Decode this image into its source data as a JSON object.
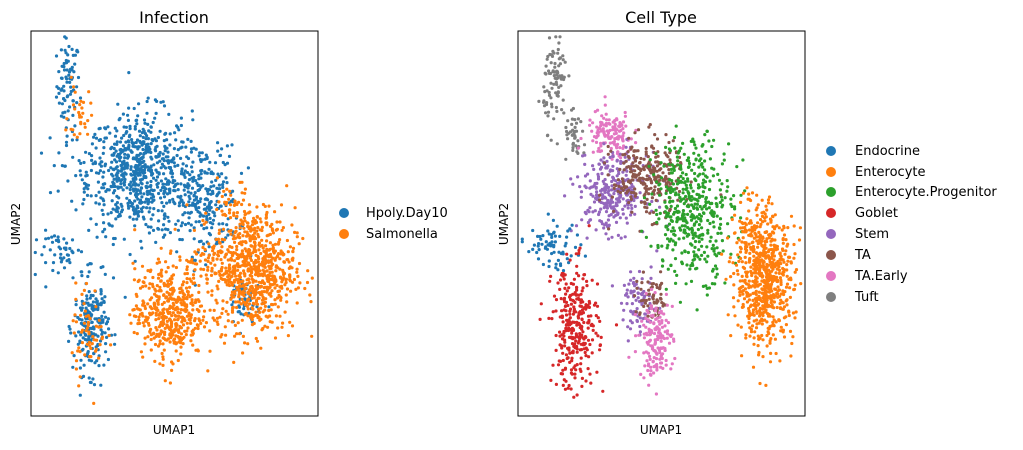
{
  "chart_data": [
    {
      "type": "scatter",
      "title": "Infection",
      "xlabel": "UMAP1",
      "ylabel": "UMAP2",
      "xlim": [
        0,
        100
      ],
      "ylim": [
        0,
        100
      ],
      "legend_position": "right",
      "legend": [
        {
          "label": "Hpoly.Day10",
          "color": "#1f77b4"
        },
        {
          "label": "Salmonella",
          "color": "#ff7f0e"
        }
      ],
      "clusters": [
        {
          "series": "Hpoly.Day10",
          "center": [
            13,
            86
          ],
          "spread": [
            2,
            6
          ],
          "count": 80
        },
        {
          "series": "Hpoly.Day10",
          "center": [
            22,
            64
          ],
          "spread": [
            8,
            4
          ],
          "count": 60
        },
        {
          "series": "Hpoly.Day10",
          "center": [
            38,
            63
          ],
          "spread": [
            9,
            8
          ],
          "count": 650
        },
        {
          "series": "Hpoly.Day10",
          "center": [
            60,
            56
          ],
          "spread": [
            6,
            7
          ],
          "count": 250
        },
        {
          "series": "Hpoly.Day10",
          "center": [
            12,
            42
          ],
          "spread": [
            5,
            3
          ],
          "count": 50
        },
        {
          "series": "Hpoly.Day10",
          "center": [
            21,
            23
          ],
          "spread": [
            3,
            6
          ],
          "count": 200
        },
        {
          "series": "Hpoly.Day10",
          "center": [
            74,
            30
          ],
          "spread": [
            3,
            4
          ],
          "count": 60
        },
        {
          "series": "Salmonella",
          "center": [
            17,
            78
          ],
          "spread": [
            2,
            4
          ],
          "count": 30
        },
        {
          "series": "Salmonella",
          "center": [
            78,
            38
          ],
          "spread": [
            7,
            8
          ],
          "count": 700
        },
        {
          "series": "Salmonella",
          "center": [
            48,
            27
          ],
          "spread": [
            6,
            6
          ],
          "count": 450
        },
        {
          "series": "Salmonella",
          "center": [
            63,
            40
          ],
          "spread": [
            6,
            4
          ],
          "count": 100
        },
        {
          "series": "Salmonella",
          "center": [
            20,
            22
          ],
          "spread": [
            3,
            6
          ],
          "count": 60
        },
        {
          "series": "Salmonella",
          "center": [
            71,
            53
          ],
          "spread": [
            3,
            4
          ],
          "count": 40
        }
      ]
    },
    {
      "type": "scatter",
      "title": "Cell Type",
      "xlabel": "UMAP1",
      "ylabel": "UMAP2",
      "xlim": [
        0,
        100
      ],
      "ylim": [
        0,
        100
      ],
      "legend_position": "right",
      "legend": [
        {
          "label": "Endocrine",
          "color": "#1f77b4"
        },
        {
          "label": "Enterocyte",
          "color": "#ff7f0e"
        },
        {
          "label": "Enterocyte.Progenitor",
          "color": "#2ca02c"
        },
        {
          "label": "Goblet",
          "color": "#d62728"
        },
        {
          "label": "Stem",
          "color": "#9467bd"
        },
        {
          "label": "TA",
          "color": "#8c564b"
        },
        {
          "label": "TA.Early",
          "color": "#e377c2"
        },
        {
          "label": "Tuft",
          "color": "#7f7f7f"
        }
      ],
      "clusters": [
        {
          "series": "Tuft",
          "center": [
            13,
            87
          ],
          "spread": [
            2,
            6
          ],
          "count": 90
        },
        {
          "series": "Tuft",
          "center": [
            20,
            72
          ],
          "spread": [
            2,
            3
          ],
          "count": 40
        },
        {
          "series": "TA.Early",
          "center": [
            32,
            73
          ],
          "spread": [
            4,
            3
          ],
          "count": 130
        },
        {
          "series": "Stem",
          "center": [
            33,
            58
          ],
          "spread": [
            6,
            5
          ],
          "count": 300
        },
        {
          "series": "TA",
          "center": [
            45,
            62
          ],
          "spread": [
            6,
            5
          ],
          "count": 260
        },
        {
          "series": "Enterocyte.Progenitor",
          "center": [
            61,
            54
          ],
          "spread": [
            7,
            9
          ],
          "count": 450
        },
        {
          "series": "Enterocyte",
          "center": [
            86,
            35
          ],
          "spread": [
            5,
            8
          ],
          "count": 650
        },
        {
          "series": "Enterocyte",
          "center": [
            82,
            48
          ],
          "spread": [
            4,
            4
          ],
          "count": 80
        },
        {
          "series": "Endocrine",
          "center": [
            12,
            44
          ],
          "spread": [
            5,
            3
          ],
          "count": 70
        },
        {
          "series": "Goblet",
          "center": [
            20,
            23
          ],
          "spread": [
            4,
            8
          ],
          "count": 300
        },
        {
          "series": "Stem",
          "center": [
            42,
            29
          ],
          "spread": [
            3,
            4
          ],
          "count": 80
        },
        {
          "series": "TA",
          "center": [
            47,
            30
          ],
          "spread": [
            3,
            3
          ],
          "count": 60
        },
        {
          "series": "TA.Early",
          "center": [
            48,
            20
          ],
          "spread": [
            3,
            5
          ],
          "count": 160
        }
      ]
    }
  ]
}
